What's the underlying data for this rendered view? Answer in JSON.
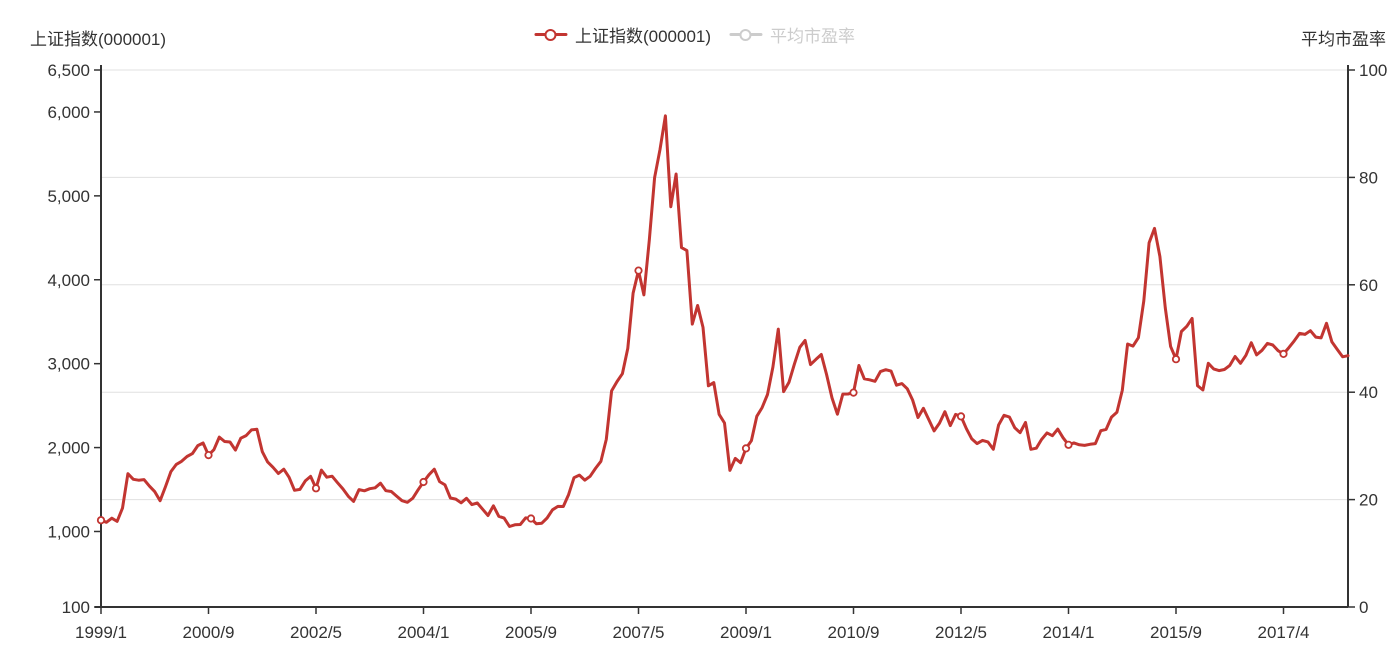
{
  "header": {
    "left_axis_title": "上证指数(000001)",
    "right_axis_title": "平均市盈率"
  },
  "legend": {
    "items": [
      {
        "label": "上证指数(000001)",
        "color": "#c23531",
        "text_color": "#333333",
        "active": true
      },
      {
        "label": "平均市盈率",
        "color": "#cccccc",
        "text_color": "#cccccc",
        "active": false
      }
    ]
  },
  "colors": {
    "series": "#c23531",
    "marker_fill": "#ffffff",
    "grid_line": "#e0e0e0",
    "axis_line": "#333333",
    "text": "#333333",
    "disabled": "#cccccc"
  },
  "chart_data": {
    "type": "line",
    "title": "",
    "legend_position": "top-center",
    "grid": "horizontal, aligned to right axis ticks",
    "x_tick_interval": 20,
    "marker_interval": 20,
    "x_tick_labels": [
      "1999/1",
      "2000/9",
      "2002/5",
      "2004/1",
      "2005/9",
      "2007/5",
      "2009/1",
      "2010/9",
      "2012/5",
      "2014/1",
      "2015/9",
      "2017/4"
    ],
    "y_left": {
      "title": "上证指数(000001)",
      "min": 100,
      "max": 6500,
      "ticks": [
        {
          "v": 100,
          "label": "100"
        },
        {
          "v": 1000,
          "label": "1,000"
        },
        {
          "v": 2000,
          "label": "2,000"
        },
        {
          "v": 3000,
          "label": "3,000"
        },
        {
          "v": 4000,
          "label": "4,000"
        },
        {
          "v": 5000,
          "label": "5,000"
        },
        {
          "v": 6000,
          "label": "6,000"
        },
        {
          "v": 6500,
          "label": "6,500"
        }
      ]
    },
    "y_right": {
      "title": "平均市盈率",
      "min": 0,
      "max": 100,
      "ticks": [
        {
          "v": 0,
          "label": "0"
        },
        {
          "v": 20,
          "label": "20"
        },
        {
          "v": 40,
          "label": "40"
        },
        {
          "v": 60,
          "label": "60"
        },
        {
          "v": 80,
          "label": "80"
        },
        {
          "v": 100,
          "label": "100"
        }
      ]
    },
    "x": [
      "1999/1",
      "1999/2",
      "1999/3",
      "1999/4",
      "1999/5",
      "1999/6",
      "1999/7",
      "1999/8",
      "1999/9",
      "1999/10",
      "1999/11",
      "1999/12",
      "2000/1",
      "2000/2",
      "2000/3",
      "2000/4",
      "2000/5",
      "2000/6",
      "2000/7",
      "2000/8",
      "2000/9",
      "2000/10",
      "2000/11",
      "2000/12",
      "2001/1",
      "2001/2",
      "2001/3",
      "2001/4",
      "2001/5",
      "2001/6",
      "2001/7",
      "2001/8",
      "2001/9",
      "2001/10",
      "2001/11",
      "2001/12",
      "2002/1",
      "2002/2",
      "2002/3",
      "2002/4",
      "2002/5",
      "2002/6",
      "2002/7",
      "2002/8",
      "2002/9",
      "2002/10",
      "2002/11",
      "2002/12",
      "2003/1",
      "2003/2",
      "2003/3",
      "2003/4",
      "2003/5",
      "2003/6",
      "2003/7",
      "2003/8",
      "2003/9",
      "2003/10",
      "2003/11",
      "2003/12",
      "2004/1",
      "2004/2",
      "2004/3",
      "2004/4",
      "2004/5",
      "2004/6",
      "2004/7",
      "2004/8",
      "2004/9",
      "2004/10",
      "2004/11",
      "2004/12",
      "2005/1",
      "2005/2",
      "2005/3",
      "2005/4",
      "2005/5",
      "2005/6",
      "2005/7",
      "2005/8",
      "2005/9",
      "2005/10",
      "2005/11",
      "2005/12",
      "2006/1",
      "2006/2",
      "2006/3",
      "2006/4",
      "2006/5",
      "2006/6",
      "2006/7",
      "2006/8",
      "2006/9",
      "2006/10",
      "2006/11",
      "2006/12",
      "2007/1",
      "2007/2",
      "2007/3",
      "2007/4",
      "2007/5",
      "2007/6",
      "2007/7",
      "2007/8",
      "2007/9",
      "2007/10",
      "2007/11",
      "2007/12",
      "2008/1",
      "2008/2",
      "2008/3",
      "2008/4",
      "2008/5",
      "2008/6",
      "2008/7",
      "2008/8",
      "2008/9",
      "2008/10",
      "2008/11",
      "2008/12",
      "2009/1",
      "2009/2",
      "2009/3",
      "2009/4",
      "2009/5",
      "2009/6",
      "2009/7",
      "2009/8",
      "2009/9",
      "2009/10",
      "2009/11",
      "2009/12",
      "2010/1",
      "2010/2",
      "2010/3",
      "2010/4",
      "2010/5",
      "2010/6",
      "2010/7",
      "2010/8",
      "2010/9",
      "2010/10",
      "2010/11",
      "2010/12",
      "2011/1",
      "2011/2",
      "2011/3",
      "2011/4",
      "2011/5",
      "2011/6",
      "2011/7",
      "2011/8",
      "2011/9",
      "2011/10",
      "2011/11",
      "2011/12",
      "2012/1",
      "2012/2",
      "2012/3",
      "2012/4",
      "2012/5",
      "2012/6",
      "2012/7",
      "2012/8",
      "2012/9",
      "2012/10",
      "2012/11",
      "2012/12",
      "2013/1",
      "2013/2",
      "2013/3",
      "2013/4",
      "2013/5",
      "2013/6",
      "2013/7",
      "2013/8",
      "2013/9",
      "2013/10",
      "2013/11",
      "2013/12",
      "2014/1",
      "2014/2",
      "2014/3",
      "2014/4",
      "2014/5",
      "2014/6",
      "2014/7",
      "2014/8",
      "2014/9",
      "2014/10",
      "2014/11",
      "2014/12",
      "2015/1",
      "2015/2",
      "2015/3",
      "2015/4",
      "2015/5",
      "2015/6",
      "2015/7",
      "2015/8",
      "2015/9",
      "2015/10",
      "2015/11",
      "2015/12",
      "2016/1",
      "2016/2",
      "2016/3",
      "2016/4",
      "2016/5",
      "2016/6",
      "2016/7",
      "2016/8",
      "2016/9",
      "2016/10",
      "2016/11",
      "2016/12",
      "2017/1",
      "2017/2",
      "2017/3",
      "2017/4",
      "2017/5",
      "2017/6",
      "2017/7",
      "2017/8",
      "2017/9",
      "2017/10",
      "2017/11",
      "2017/12",
      "2018/1",
      "2018/2",
      "2018/3",
      "2018/4",
      "2018/5"
    ],
    "series": [
      {
        "name": "上证指数(000001)",
        "color": "#c23531",
        "visible": true,
        "values": [
          1135,
          1110,
          1158,
          1120,
          1279,
          1689,
          1622,
          1611,
          1618,
          1541,
          1474,
          1367,
          1535,
          1714,
          1800,
          1836,
          1894,
          1928,
          2023,
          2054,
          1910,
          1975,
          2125,
          2073,
          2066,
          1970,
          2112,
          2143,
          2211,
          2218,
          1951,
          1829,
          1765,
          1691,
          1742,
          1646,
          1491,
          1501,
          1603,
          1657,
          1515,
          1732,
          1647,
          1659,
          1582,
          1508,
          1419,
          1358,
          1499,
          1485,
          1510,
          1521,
          1576,
          1486,
          1476,
          1422,
          1367,
          1348,
          1397,
          1497,
          1590,
          1675,
          1742,
          1595,
          1555,
          1399,
          1386,
          1342,
          1396,
          1320,
          1340,
          1266,
          1191,
          1306,
          1181,
          1159,
          1060,
          1080,
          1083,
          1162,
          1155,
          1092,
          1099,
          1161,
          1258,
          1299,
          1298,
          1440,
          1641,
          1672,
          1612,
          1658,
          1752,
          1837,
          2099,
          2675,
          2786,
          2881,
          3183,
          3841,
          4109,
          3820,
          4471,
          5218,
          5552,
          5954,
          4871,
          5261,
          4383,
          4348,
          3472,
          3693,
          3433,
          2736,
          2775,
          2397,
          2293,
          1728,
          1871,
          1820,
          1990,
          2082,
          2373,
          2477,
          2632,
          2959,
          3412,
          2667,
          2779,
          2995,
          3195,
          3277,
          2989,
          3051,
          3109,
          2870,
          2592,
          2398,
          2637,
          2638,
          2655,
          2978,
          2820,
          2808,
          2790,
          2905,
          2928,
          2911,
          2743,
          2762,
          2701,
          2567,
          2359,
          2468,
          2333,
          2199,
          2292,
          2428,
          2262,
          2396,
          2372,
          2225,
          2103,
          2047,
          2086,
          2068,
          1980,
          2269,
          2385,
          2365,
          2236,
          2177,
          2300,
          1979,
          1993,
          2098,
          2175,
          2141,
          2220,
          2116,
          2033,
          2056,
          2033,
          2026,
          2039,
          2048,
          2201,
          2217,
          2363,
          2420,
          2683,
          3235,
          3210,
          3310,
          3748,
          4441,
          4612,
          4277,
          3664,
          3206,
          3053,
          3383,
          3445,
          3539,
          2738,
          2688,
          3004,
          2938,
          2917,
          2930,
          2979,
          3085,
          3005,
          3100,
          3250,
          3104,
          3159,
          3242,
          3223,
          3155,
          3117,
          3192,
          3273,
          3361,
          3349,
          3393,
          3317,
          3307,
          3481,
          3259,
          3169,
          3082,
          3095
        ]
      },
      {
        "name": "平均市盈率",
        "color": "#cccccc",
        "visible": false,
        "values": []
      }
    ]
  }
}
